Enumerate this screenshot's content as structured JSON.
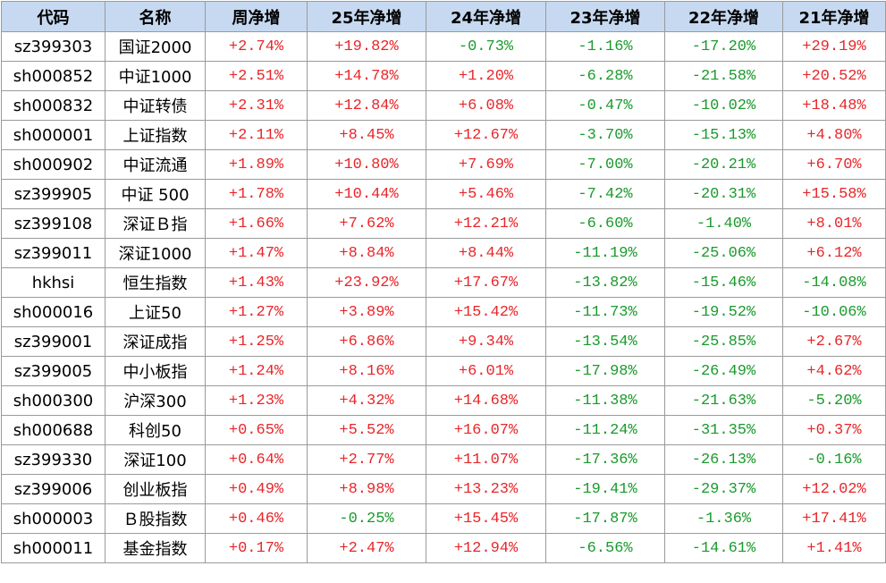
{
  "table": {
    "header": [
      "代码",
      "名称",
      "周净增",
      "25年净增",
      "24年净增",
      "23年净增",
      "22年净增",
      "21年净增"
    ],
    "rows": [
      [
        "sz399303",
        "国证2000",
        "+2.74%",
        "+19.82%",
        "-0.73%",
        "-1.16%",
        "-17.20%",
        "+29.19%"
      ],
      [
        "sh000852",
        "中证1000",
        "+2.51%",
        "+14.78%",
        "+1.20%",
        "-6.28%",
        "-21.58%",
        "+20.52%"
      ],
      [
        "sh000832",
        "中证转债",
        "+2.31%",
        "+12.84%",
        "+6.08%",
        "-0.47%",
        "-10.02%",
        "+18.48%"
      ],
      [
        "sh000001",
        "上证指数",
        "+2.11%",
        "+8.45%",
        "+12.67%",
        "-3.70%",
        "-15.13%",
        "+4.80%"
      ],
      [
        "sh000902",
        "中证流通",
        "+1.89%",
        "+10.80%",
        "+7.69%",
        "-7.00%",
        "-20.21%",
        "+6.70%"
      ],
      [
        "sz399905",
        "中证 500",
        "+1.78%",
        "+10.44%",
        "+5.46%",
        "-7.42%",
        "-20.31%",
        "+15.58%"
      ],
      [
        "sz399108",
        "深证Ｂ指",
        "+1.66%",
        "+7.62%",
        "+12.21%",
        "-6.60%",
        "-1.40%",
        "+8.01%"
      ],
      [
        "sz399011",
        "深证1000",
        "+1.47%",
        "+8.84%",
        "+8.44%",
        "-11.19%",
        "-25.06%",
        "+6.12%"
      ],
      [
        "hkhsi",
        "恒生指数",
        "+1.43%",
        "+23.92%",
        "+17.67%",
        "-13.82%",
        "-15.46%",
        "-14.08%"
      ],
      [
        "sh000016",
        "上证50",
        "+1.27%",
        "+3.89%",
        "+15.42%",
        "-11.73%",
        "-19.52%",
        "-10.06%"
      ],
      [
        "sz399001",
        "深证成指",
        "+1.25%",
        "+6.86%",
        "+9.34%",
        "-13.54%",
        "-25.85%",
        "+2.67%"
      ],
      [
        "sz399005",
        "中小板指",
        "+1.24%",
        "+8.16%",
        "+6.01%",
        "-17.98%",
        "-26.49%",
        "+4.62%"
      ],
      [
        "sh000300",
        "沪深300",
        "+1.23%",
        "+4.32%",
        "+14.68%",
        "-11.38%",
        "-21.63%",
        "-5.20%"
      ],
      [
        "sh000688",
        "科创50",
        "+0.65%",
        "+5.52%",
        "+16.07%",
        "-11.24%",
        "-31.35%",
        "+0.37%"
      ],
      [
        "sz399330",
        "深证100",
        "+0.64%",
        "+2.77%",
        "+11.07%",
        "-17.36%",
        "-26.13%",
        "-0.16%"
      ],
      [
        "sz399006",
        "创业板指",
        "+0.49%",
        "+8.98%",
        "+13.23%",
        "-19.41%",
        "-29.37%",
        "+12.02%"
      ],
      [
        "sh000003",
        "Ｂ股指数",
        "+0.46%",
        "-0.25%",
        "+15.45%",
        "-17.87%",
        "-1.36%",
        "+17.41%"
      ],
      [
        "sh000011",
        "基金指数",
        "+0.17%",
        "+2.47%",
        "+12.94%",
        "-6.56%",
        "-14.61%",
        "+1.41%"
      ]
    ]
  }
}
